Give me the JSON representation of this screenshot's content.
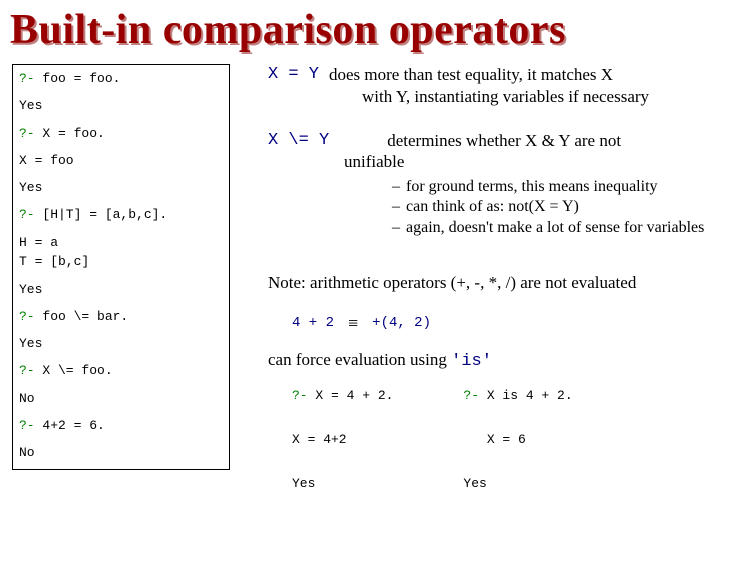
{
  "title": {
    "text": "Built-in comparison operators",
    "color": "#990000",
    "shadow_color": "#c08080"
  },
  "codebox": {
    "lines": [
      {
        "prompt": "?- ",
        "cmd": "foo = foo."
      },
      {
        "plain": ""
      },
      {
        "plain": "Yes"
      },
      {
        "plain": ""
      },
      {
        "prompt": "?- ",
        "cmd": "X = foo."
      },
      {
        "plain": ""
      },
      {
        "plain": "X = foo"
      },
      {
        "plain": ""
      },
      {
        "plain": "Yes"
      },
      {
        "plain": ""
      },
      {
        "prompt": "?- ",
        "cmd": "[H|T] = [a,b,c]."
      },
      {
        "plain": ""
      },
      {
        "plain": "H = a"
      },
      {
        "plain": "T = [b,c]"
      },
      {
        "plain": ""
      },
      {
        "plain": "Yes"
      },
      {
        "plain": ""
      },
      {
        "prompt": "?- ",
        "cmd": "foo \\= bar."
      },
      {
        "plain": ""
      },
      {
        "plain": "Yes"
      },
      {
        "plain": ""
      },
      {
        "prompt": "?- ",
        "cmd": "X \\= foo."
      },
      {
        "plain": ""
      },
      {
        "plain": "No"
      },
      {
        "plain": ""
      },
      {
        "prompt": "?- ",
        "cmd": "4+2 = 6."
      },
      {
        "plain": ""
      },
      {
        "plain": "No"
      }
    ]
  },
  "explain1": {
    "lhs": "X = Y",
    "line1": "does more than test equality, it matches X",
    "line2": "with Y, instantiating variables if necessary"
  },
  "explain2": {
    "lhs": "X \\= Y",
    "rhs1": "determines whether X & Y are not",
    "cont": "unifiable",
    "bullets": [
      "for ground terms, this means inequality",
      "can think of as:  not(X = Y)",
      "again, doesn't make a lot of sense for variables"
    ]
  },
  "note": "Note: arithmetic operators (+, -, *, /) are not evaluated",
  "arith": {
    "left": "4 + 2",
    "equiv": "≡",
    "right": "+(4, 2)"
  },
  "force": {
    "pre": "can force evaluation using ",
    "kw": "'is'"
  },
  "bottom_left": {
    "line1_prompt": "?- ",
    "line1_cmd": "X = 4 + 2.",
    "line2": "X = 4+2",
    "line3": "Yes"
  },
  "bottom_right": {
    "line1_prompt": "?- ",
    "line1_cmd": "X is 4 + 2.",
    "line2": "X = 6",
    "line3": "Yes"
  },
  "colors": {
    "prompt_green": "#008000",
    "mono_navy": "#000080",
    "text_black": "#000000",
    "bg": "#ffffff"
  }
}
